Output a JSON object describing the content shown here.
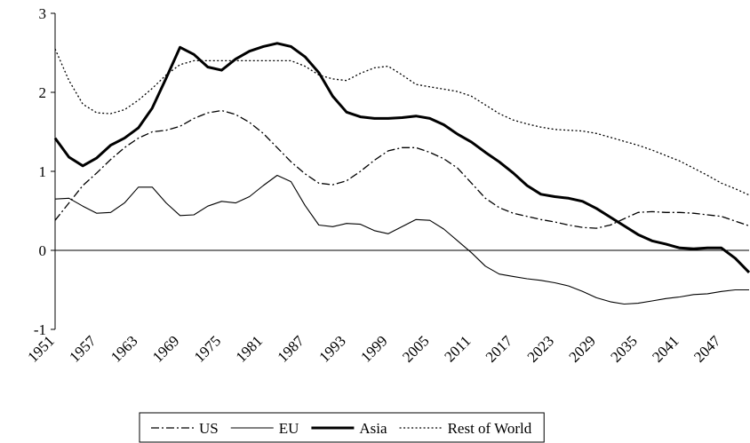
{
  "chart_data": {
    "type": "line",
    "x": [
      1951,
      1953,
      1955,
      1957,
      1959,
      1961,
      1963,
      1965,
      1967,
      1969,
      1971,
      1973,
      1975,
      1977,
      1979,
      1981,
      1983,
      1985,
      1987,
      1989,
      1991,
      1993,
      1995,
      1997,
      1999,
      2001,
      2003,
      2005,
      2007,
      2009,
      2011,
      2013,
      2015,
      2017,
      2019,
      2021,
      2023,
      2025,
      2027,
      2029,
      2031,
      2033,
      2035,
      2037,
      2039,
      2041,
      2043,
      2045,
      2047,
      2049,
      2051
    ],
    "xlim": [
      1951,
      2051
    ],
    "xticks": [
      1951,
      1957,
      1963,
      1969,
      1975,
      1981,
      1987,
      1993,
      1999,
      2005,
      2011,
      2017,
      2023,
      2029,
      2035,
      2041,
      2047
    ],
    "ylim": [
      -1,
      3
    ],
    "yticks": [
      -1,
      0,
      1,
      2,
      3
    ],
    "legend": "bottom",
    "series": [
      {
        "name": "US",
        "color": "#000000",
        "style": "dashdot",
        "values": [
          0.38,
          0.6,
          0.82,
          0.98,
          1.15,
          1.3,
          1.42,
          1.5,
          1.52,
          1.57,
          1.67,
          1.74,
          1.77,
          1.72,
          1.62,
          1.48,
          1.3,
          1.12,
          0.97,
          0.85,
          0.83,
          0.88,
          1.0,
          1.14,
          1.26,
          1.3,
          1.3,
          1.24,
          1.16,
          1.04,
          0.85,
          0.66,
          0.54,
          0.47,
          0.43,
          0.39,
          0.36,
          0.32,
          0.29,
          0.28,
          0.32,
          0.4,
          0.48,
          0.49,
          0.48,
          0.48,
          0.47,
          0.45,
          0.43,
          0.37,
          0.31
        ]
      },
      {
        "name": "EU",
        "color": "#000000",
        "style": "thin",
        "values": [
          0.65,
          0.66,
          0.56,
          0.47,
          0.48,
          0.6,
          0.8,
          0.8,
          0.6,
          0.44,
          0.45,
          0.56,
          0.62,
          0.6,
          0.68,
          0.82,
          0.95,
          0.87,
          0.57,
          0.32,
          0.3,
          0.34,
          0.33,
          0.25,
          0.21,
          0.3,
          0.39,
          0.38,
          0.27,
          0.12,
          -0.03,
          -0.2,
          -0.3,
          -0.33,
          -0.36,
          -0.38,
          -0.41,
          -0.45,
          -0.52,
          -0.6,
          -0.65,
          -0.68,
          -0.67,
          -0.64,
          -0.61,
          -0.59,
          -0.56,
          -0.55,
          -0.52,
          -0.5,
          -0.5
        ]
      },
      {
        "name": "Asia",
        "color": "#000000",
        "style": "thick",
        "values": [
          1.42,
          1.18,
          1.07,
          1.17,
          1.33,
          1.42,
          1.55,
          1.8,
          2.18,
          2.57,
          2.48,
          2.32,
          2.28,
          2.42,
          2.52,
          2.58,
          2.62,
          2.58,
          2.45,
          2.25,
          1.95,
          1.75,
          1.69,
          1.67,
          1.67,
          1.68,
          1.7,
          1.67,
          1.59,
          1.47,
          1.37,
          1.24,
          1.12,
          0.98,
          0.82,
          0.71,
          0.68,
          0.66,
          0.62,
          0.53,
          0.42,
          0.31,
          0.2,
          0.12,
          0.08,
          0.03,
          0.02,
          0.03,
          0.03,
          -0.1,
          -0.28
        ]
      },
      {
        "name": "Rest of World",
        "color": "#000000",
        "style": "dotted",
        "values": [
          2.55,
          2.15,
          1.85,
          1.74,
          1.73,
          1.78,
          1.9,
          2.05,
          2.22,
          2.35,
          2.4,
          2.4,
          2.4,
          2.4,
          2.4,
          2.4,
          2.4,
          2.4,
          2.33,
          2.22,
          2.17,
          2.15,
          2.24,
          2.31,
          2.33,
          2.22,
          2.1,
          2.07,
          2.04,
          2.01,
          1.95,
          1.84,
          1.73,
          1.65,
          1.6,
          1.56,
          1.53,
          1.52,
          1.51,
          1.48,
          1.43,
          1.38,
          1.33,
          1.27,
          1.2,
          1.13,
          1.04,
          0.95,
          0.85,
          0.78,
          0.7
        ]
      }
    ]
  }
}
